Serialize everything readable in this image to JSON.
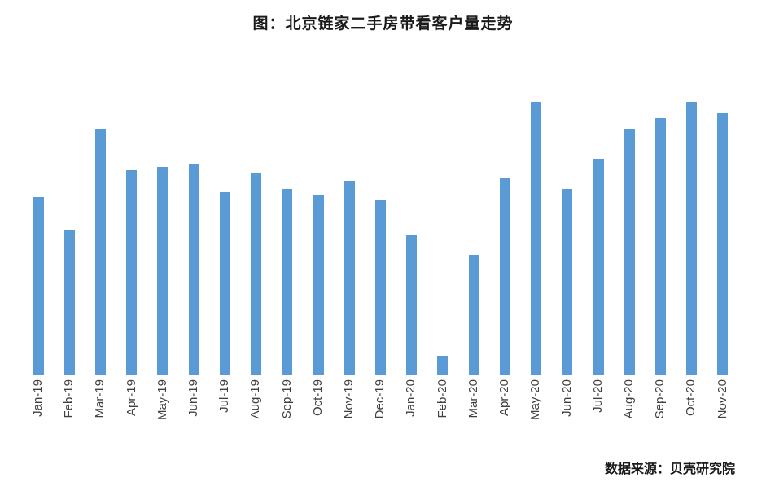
{
  "title": "图：北京链家二手房带看客户量走势",
  "source_note": "数据来源：贝壳研究院",
  "chart_data": {
    "type": "bar",
    "title": "图：北京链家二手房带看客户量走势",
    "categories": [
      "Jan-19",
      "Feb-19",
      "Mar-19",
      "Apr-19",
      "May-19",
      "Jun-19",
      "Jul-19",
      "Aug-19",
      "Sep-19",
      "Oct-19",
      "Nov-19",
      "Dec-19",
      "Jan-20",
      "Feb-20",
      "Mar-20",
      "Apr-20",
      "May-20",
      "Jun-20",
      "Jul-20",
      "Aug-20",
      "Sep-20",
      "Oct-20",
      "Nov-20"
    ],
    "values": [
      65,
      53,
      90,
      75,
      76,
      77,
      67,
      74,
      68,
      66,
      71,
      64,
      51,
      7,
      44,
      72,
      100,
      68,
      79,
      90,
      94,
      100,
      96
    ],
    "value_units": "relative index (no y-axis shown in source chart)",
    "xlabel": "",
    "ylabel": "",
    "ylim": [
      0,
      106
    ],
    "grid": false,
    "legend_position": "none",
    "bar_color": "#5B9BD5",
    "axis_color": "#c9c9c9",
    "annotation": "数据来源：贝壳研究院"
  }
}
